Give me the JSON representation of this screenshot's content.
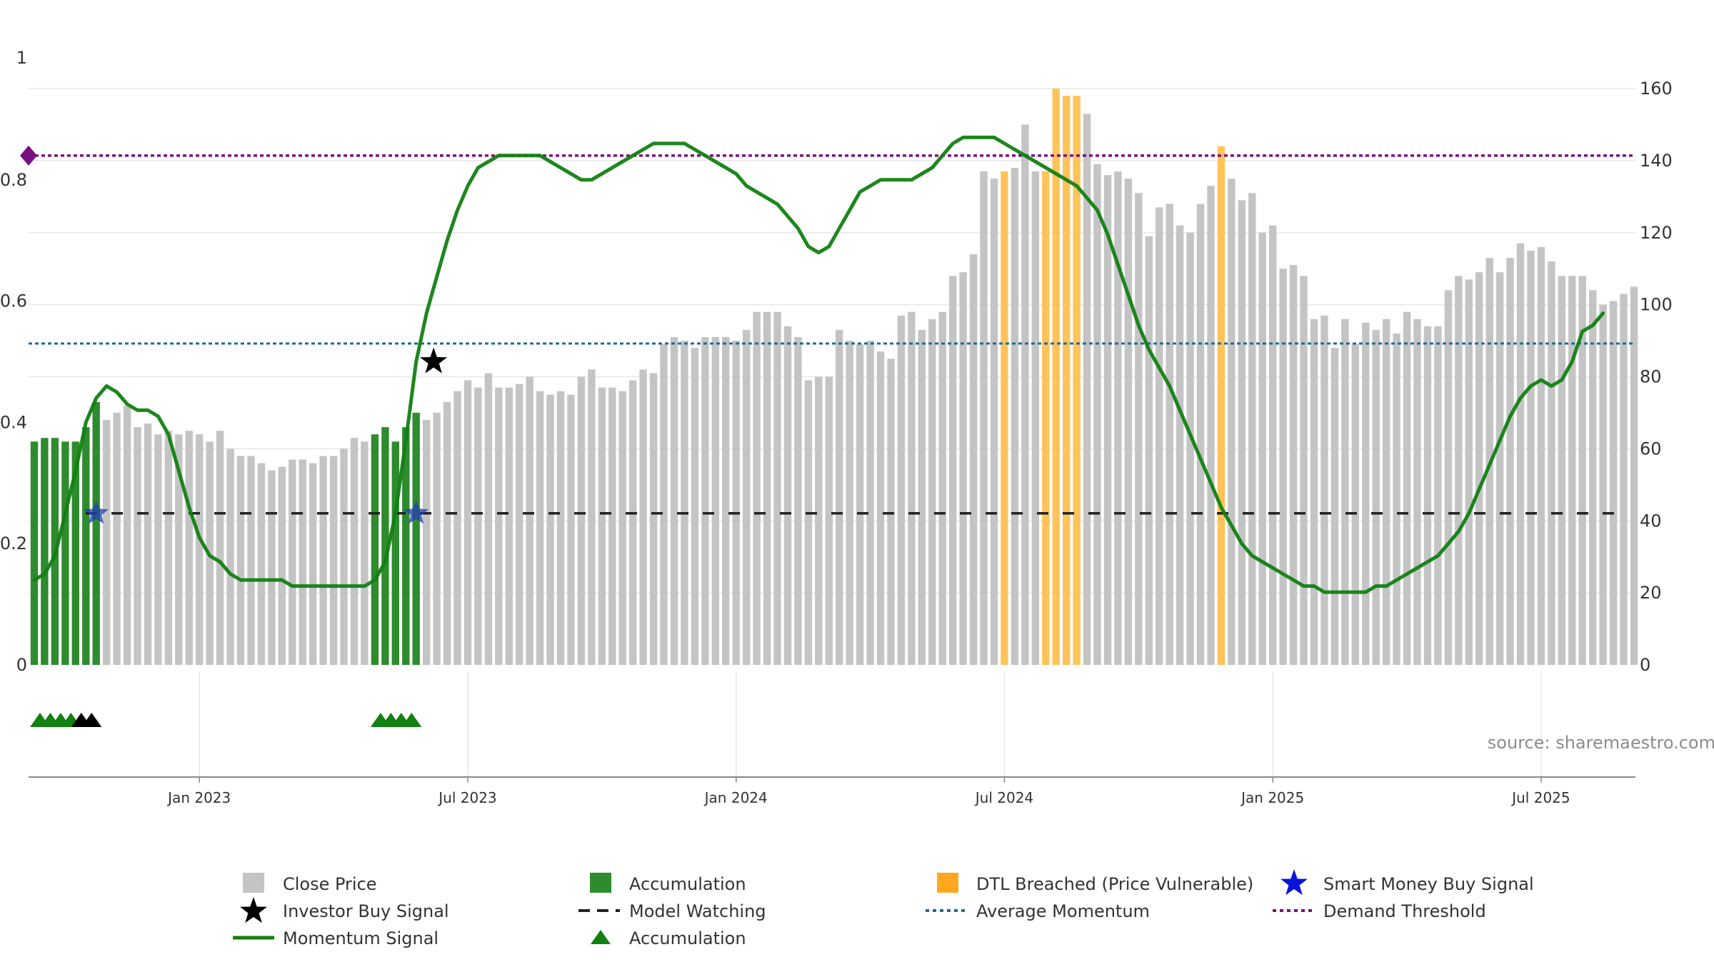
{
  "chart_data": {
    "type": "bar+line",
    "title": "",
    "source": "source: sharemaestro.com",
    "x_ticks": [
      "Jan 2023",
      "Jul 2023",
      "Jan 2024",
      "Jul 2024",
      "Jan 2025",
      "Jul 2025"
    ],
    "x_tick_weeks": [
      16,
      42,
      68,
      94,
      120,
      146
    ],
    "y_left": {
      "ticks": [
        "0",
        "0.2",
        "0.4",
        "0.6",
        "0.8"
      ],
      "top_label": "1",
      "range": [
        0,
        1
      ]
    },
    "y_right": {
      "ticks": [
        "0",
        "20",
        "40",
        "60",
        "80",
        "100",
        "120",
        "140",
        "160"
      ],
      "range": [
        0,
        160
      ]
    },
    "close_price": [
      62,
      63,
      63,
      62,
      62,
      66,
      73,
      68,
      70,
      72,
      66,
      67,
      64,
      65,
      64,
      65,
      64,
      62,
      65,
      60,
      58,
      58,
      56,
      54,
      55,
      57,
      57,
      56,
      58,
      58,
      60,
      63,
      62,
      64,
      66,
      62,
      66,
      70,
      68,
      70,
      73,
      76,
      79,
      77,
      81,
      77,
      77,
      78,
      80,
      76,
      75,
      76,
      75,
      80,
      82,
      77,
      77,
      76,
      79,
      82,
      81,
      89,
      91,
      90,
      88,
      91,
      91,
      91,
      90,
      93,
      98,
      98,
      98,
      94,
      91,
      79,
      80,
      80,
      93,
      90,
      89,
      90,
      87,
      85,
      97,
      98,
      93,
      96,
      98,
      108,
      109,
      114,
      137,
      135,
      137,
      138,
      150,
      137,
      137,
      160,
      158,
      158,
      153,
      139,
      136,
      137,
      135,
      131,
      119,
      127,
      128,
      122,
      120,
      128,
      133,
      144,
      135,
      129,
      131,
      120,
      122,
      110,
      111,
      108,
      96,
      97,
      88,
      96,
      89,
      95,
      93,
      96,
      92,
      98,
      96,
      94,
      94,
      104,
      108,
      107,
      109,
      113,
      109,
      113,
      117,
      115,
      116,
      112,
      108,
      108,
      108,
      104,
      100,
      101,
      103,
      105
    ],
    "bar_categories": [
      "accum",
      "accum",
      "accum",
      "accum",
      "accum",
      "accum",
      "accum",
      "close",
      "close",
      "close",
      "close",
      "close",
      "close",
      "close",
      "close",
      "close",
      "close",
      "close",
      "close",
      "close",
      "close",
      "close",
      "close",
      "close",
      "close",
      "close",
      "close",
      "close",
      "close",
      "close",
      "close",
      "close",
      "close",
      "accum",
      "accum",
      "accum",
      "accum",
      "accum",
      "close",
      "close",
      "close",
      "close",
      "close",
      "close",
      "close",
      "close",
      "close",
      "close",
      "close",
      "close",
      "close",
      "close",
      "close",
      "close",
      "close",
      "close",
      "close",
      "close",
      "close",
      "close",
      "close",
      "close",
      "close",
      "close",
      "close",
      "close",
      "close",
      "close",
      "close",
      "close",
      "close",
      "close",
      "close",
      "close",
      "close",
      "close",
      "close",
      "close",
      "close",
      "close",
      "close",
      "close",
      "close",
      "close",
      "close",
      "close",
      "close",
      "close",
      "close",
      "close",
      "close",
      "close",
      "close",
      "close",
      "dtl",
      "close",
      "close",
      "close",
      "dtl",
      "dtl",
      "dtl",
      "dtl",
      "close",
      "close",
      "close",
      "close",
      "close",
      "close",
      "close",
      "close",
      "close",
      "close",
      "close",
      "close",
      "close",
      "dtl",
      "close",
      "close",
      "close",
      "close",
      "close",
      "close",
      "close",
      "close",
      "close",
      "close",
      "close",
      "close",
      "close",
      "close",
      "close",
      "close",
      "close",
      "close",
      "close",
      "close",
      "close",
      "close",
      "close",
      "close",
      "close",
      "close",
      "close",
      "close",
      "close",
      "close",
      "close",
      "close",
      "close",
      "close",
      "close",
      "close",
      "close",
      "close",
      "close",
      "close",
      "close",
      "close",
      "close",
      "close",
      "close",
      "close",
      "close",
      "close"
    ],
    "momentum_signal": [
      0.14,
      0.15,
      0.18,
      0.25,
      0.32,
      0.4,
      0.44,
      0.46,
      0.45,
      0.43,
      0.42,
      0.42,
      0.41,
      0.38,
      0.32,
      0.26,
      0.21,
      0.18,
      0.17,
      0.15,
      0.14,
      0.14,
      0.14,
      0.14,
      0.14,
      0.13,
      0.13,
      0.13,
      0.13,
      0.13,
      0.13,
      0.13,
      0.13,
      0.14,
      0.17,
      0.25,
      0.37,
      0.5,
      0.58,
      0.64,
      0.7,
      0.75,
      0.79,
      0.82,
      0.83,
      0.84,
      0.84,
      0.84,
      0.84,
      0.84,
      0.83,
      0.82,
      0.81,
      0.8,
      0.8,
      0.81,
      0.82,
      0.83,
      0.84,
      0.85,
      0.86,
      0.86,
      0.86,
      0.86,
      0.85,
      0.84,
      0.83,
      0.82,
      0.81,
      0.79,
      0.78,
      0.77,
      0.76,
      0.74,
      0.72,
      0.69,
      0.68,
      0.69,
      0.72,
      0.75,
      0.78,
      0.79,
      0.8,
      0.8,
      0.8,
      0.8,
      0.81,
      0.82,
      0.84,
      0.86,
      0.87,
      0.87,
      0.87,
      0.87,
      0.86,
      0.85,
      0.84,
      0.83,
      0.82,
      0.81,
      0.8,
      0.79,
      0.77,
      0.75,
      0.71,
      0.66,
      0.61,
      0.56,
      0.52,
      0.49,
      0.46,
      0.42,
      0.38,
      0.34,
      0.3,
      0.26,
      0.23,
      0.2,
      0.18,
      0.17,
      0.16,
      0.15,
      0.14,
      0.13,
      0.13,
      0.12,
      0.12,
      0.12,
      0.12,
      0.12,
      0.13,
      0.13,
      0.14,
      0.15,
      0.16,
      0.17,
      0.18,
      0.2,
      0.22,
      0.25,
      0.29,
      0.33,
      0.37,
      0.41,
      0.44,
      0.46,
      0.47,
      0.46,
      0.47,
      0.5,
      0.55,
      0.56,
      0.58
    ],
    "average_momentum": 0.53,
    "demand_threshold": 0.84,
    "model_watching_level": 0.25,
    "investor_buy_signals": [
      {
        "week": 38,
        "value": 0.5
      }
    ],
    "smart_money_buy_signals": [
      {
        "week": 6,
        "value": 0.25
      },
      {
        "week": 37,
        "value": 0.25
      }
    ],
    "accumulation_markers_green": [
      0,
      1,
      2,
      3,
      33,
      34,
      35,
      36
    ],
    "accumulation_markers_black": [
      4,
      5
    ],
    "colors": {
      "close": "#c4c4c4",
      "accum": "#2e8b2e",
      "dtl": "#ffc35a",
      "momentum": "#128012",
      "average": "#206b8f",
      "threshold": "#7a1080",
      "watching": "#222222",
      "smart_money": "#1f3fb0",
      "investor": "#000000",
      "grid": "#e8e8e8",
      "axis_text": "#333333",
      "source_text": "#8c8c8c"
    },
    "legend": {
      "close_price": "Close Price",
      "accumulation": "Accumulation",
      "dtl_breached": "DTL Breached (Price Vulnerable)",
      "smart_money": "Smart Money Buy Signal",
      "investor_buy": "Investor Buy Signal",
      "model_watching": "Model Watching",
      "average_momentum": "Average Momentum",
      "demand_threshold": "Demand Threshold",
      "momentum_signal": "Momentum Signal",
      "accumulation_marker": "Accumulation"
    }
  }
}
